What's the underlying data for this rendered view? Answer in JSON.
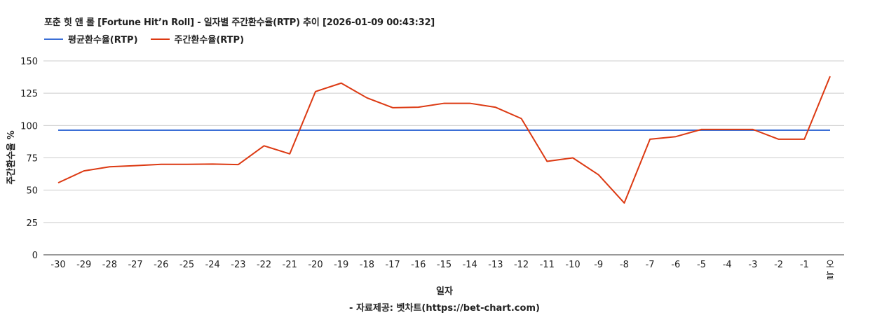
{
  "chart_data": {
    "type": "line",
    "title": "포춘 힛 앤 롤 [Fortune Hit’n Roll] - 일자별 주간환수율(RTP) 추이 [2026-01-09 00:43:32]",
    "xlabel": "일자",
    "ylabel": "주간환수율 %",
    "source": "- 자료제공: 벳차트(https://bet-chart.com)",
    "ylim": [
      0,
      150
    ],
    "yticks": [
      "0",
      "25",
      "50",
      "75",
      "100",
      "125",
      "150"
    ],
    "grid": true,
    "legend_position": "top-left",
    "categories": [
      "-30",
      "-29",
      "-28",
      "-27",
      "-26",
      "-25",
      "-24",
      "-23",
      "-22",
      "-21",
      "-20",
      "-19",
      "-18",
      "-17",
      "-16",
      "-15",
      "-14",
      "-13",
      "-12",
      "-11",
      "-10",
      "-9",
      "-8",
      "-7",
      "-6",
      "-5",
      "-4",
      "-3",
      "-2",
      "-1",
      "오늘"
    ],
    "series": [
      {
        "name": "평균환수율(RTP)",
        "color": "#3b6fd6",
        "values": [
          96.4,
          96.4,
          96.4,
          96.4,
          96.4,
          96.4,
          96.4,
          96.4,
          96.4,
          96.4,
          96.4,
          96.4,
          96.4,
          96.4,
          96.4,
          96.4,
          96.4,
          96.4,
          96.4,
          96.4,
          96.4,
          96.4,
          96.4,
          96.4,
          96.4,
          96.4,
          96.4,
          96.4,
          96.4,
          96.4,
          96.4
        ]
      },
      {
        "name": "주간환수율(RTP)",
        "color": "#dc3912",
        "values": [
          55.7,
          64.9,
          68.1,
          69.0,
          70.0,
          70.0,
          70.2,
          69.8,
          84.3,
          78.1,
          126.3,
          132.8,
          121.4,
          113.8,
          114.2,
          117.2,
          117.2,
          114.1,
          105.4,
          72.3,
          75.0,
          61.9,
          40.1,
          89.4,
          91.4,
          97.0,
          97.0,
          97.0,
          89.4,
          89.4,
          138.1
        ]
      }
    ]
  }
}
